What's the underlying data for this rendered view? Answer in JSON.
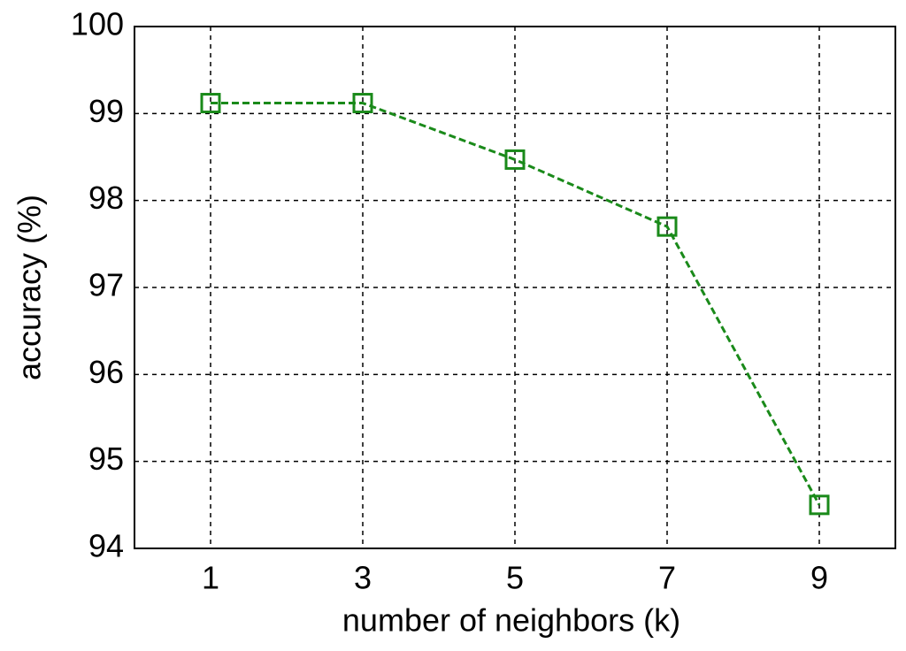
{
  "chart_data": {
    "type": "line",
    "xlabel": "number of neighbors (k)",
    "ylabel": "accuracy (%)",
    "x": [
      1,
      3,
      5,
      7,
      9
    ],
    "series": [
      {
        "color": "#1a8a1a",
        "values": [
          99.12,
          99.12,
          98.47,
          97.7,
          94.5
        ]
      }
    ],
    "xlim": [
      0,
      10
    ],
    "xticks": [
      1,
      3,
      5,
      7,
      9
    ],
    "ylim": [
      94,
      100
    ],
    "yticks": [
      94,
      95,
      96,
      97,
      98,
      99,
      100
    ],
    "grid": true
  }
}
